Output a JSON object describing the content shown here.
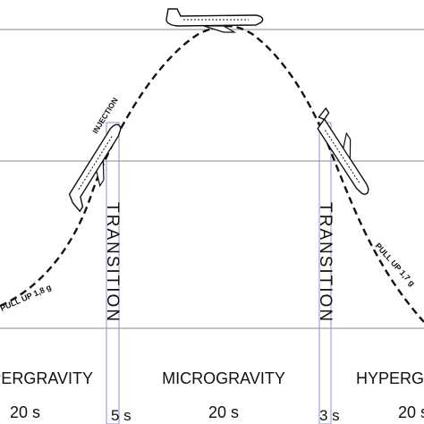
{
  "phases": {
    "hypergravity_left": "HYPERGRAVITY",
    "microgravity": "MICROGRAVITY",
    "hypergravity_right": "HYPERGRAVITY"
  },
  "durations": {
    "hyper_left": "20 s",
    "transition_left": "5 s",
    "micro": "20 s",
    "transition_right": "3 s",
    "hyper_right": "20 s"
  },
  "transition_label": "TRANSITION",
  "annotations": {
    "injection": "INJECTION",
    "pull_up_left": "PULL UP 1,8 g",
    "pull_up_right": "PULL UP 1,7 g"
  },
  "colors": {
    "line": "#111111",
    "guide": "#888888",
    "transition_box": "#8f8fd8",
    "aircraft": "#ffffff"
  }
}
